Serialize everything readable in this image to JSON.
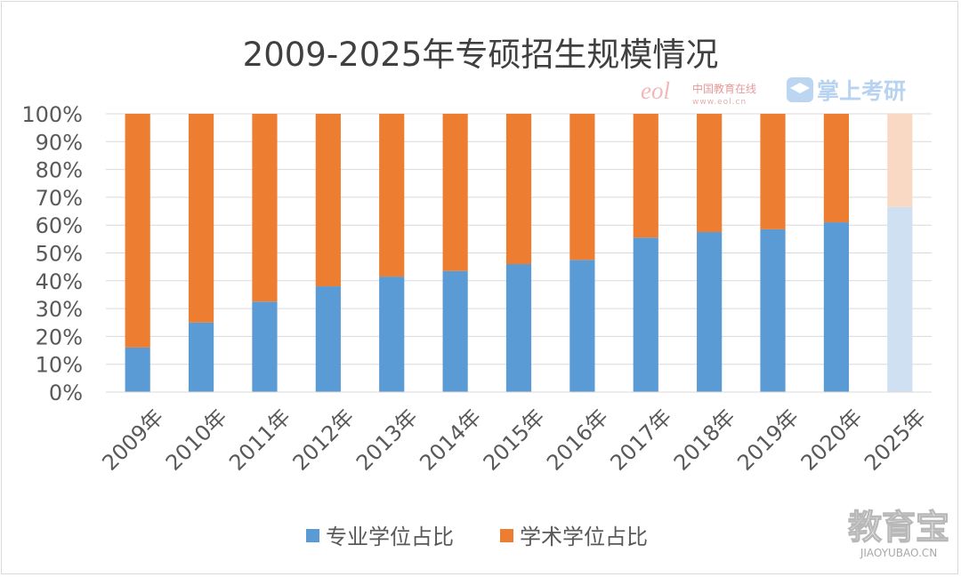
{
  "chart_data": {
    "type": "bar",
    "stacked": true,
    "title": "2009-2025年专硕招生规模情况",
    "categories": [
      "2009年",
      "2010年",
      "2011年",
      "2012年",
      "2013年",
      "2014年",
      "2015年",
      "2016年",
      "2017年",
      "2018年",
      "2019年",
      "2020年",
      "2025年"
    ],
    "series": [
      {
        "name": "专业学位占比",
        "color": "#5b9bd5",
        "values": [
          16,
          25,
          32.5,
          38,
          41.5,
          43.5,
          46,
          47.5,
          55.5,
          57.5,
          58.5,
          61,
          66.5
        ]
      },
      {
        "name": "学术学位占比",
        "color": "#ed7d31",
        "values": [
          84,
          75,
          67.5,
          62,
          58.5,
          56.5,
          54,
          52.5,
          44.5,
          42.5,
          41.5,
          39,
          33.5
        ]
      }
    ],
    "projected_categories": [
      "2025年"
    ],
    "projected_colors": {
      "专业学位占比": "#cfe0f3",
      "学术学位占比": "#fad9c4"
    },
    "y_ticks": [
      "0%",
      "10%",
      "20%",
      "30%",
      "40%",
      "50%",
      "60%",
      "70%",
      "80%",
      "90%",
      "100%"
    ],
    "ylim": [
      0,
      100
    ],
    "grid": true,
    "legend_position": "bottom"
  },
  "watermarks": {
    "eol_logo": "eol",
    "eol_name": "中国教育在线",
    "eol_url": "www.eol.cn",
    "app_name": "掌上考研",
    "site_name": "教育宝",
    "site_url": "JIAOYUBAO.CN"
  }
}
